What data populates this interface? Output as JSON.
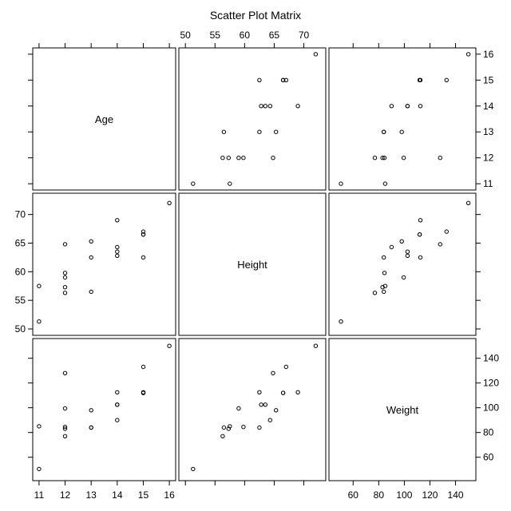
{
  "chart_data": {
    "type": "scatter",
    "title": "Scatter Plot Matrix",
    "variables": [
      "Age",
      "Height",
      "Weight"
    ],
    "ranges": {
      "Age": [
        10.85,
        16.15
      ],
      "Height": [
        49.3,
        73.3
      ],
      "Weight": [
        43,
        154
      ]
    },
    "ticks": {
      "Age": [
        11,
        12,
        13,
        14,
        15,
        16
      ],
      "Height": [
        50,
        55,
        60,
        65,
        70
      ],
      "Weight": [
        60,
        80,
        100,
        120,
        140
      ]
    },
    "grid": false,
    "observations": [
      {
        "Age": 14,
        "Height": 69.0,
        "Weight": 112.5
      },
      {
        "Age": 13,
        "Height": 56.5,
        "Weight": 84.0
      },
      {
        "Age": 13,
        "Height": 65.3,
        "Weight": 98.0
      },
      {
        "Age": 14,
        "Height": 62.8,
        "Weight": 102.5
      },
      {
        "Age": 14,
        "Height": 63.5,
        "Weight": 102.5
      },
      {
        "Age": 12,
        "Height": 57.3,
        "Weight": 83.0
      },
      {
        "Age": 12,
        "Height": 59.8,
        "Weight": 84.5
      },
      {
        "Age": 15,
        "Height": 62.5,
        "Weight": 112.5
      },
      {
        "Age": 13,
        "Height": 62.5,
        "Weight": 84.0
      },
      {
        "Age": 12,
        "Height": 59.0,
        "Weight": 99.5
      },
      {
        "Age": 11,
        "Height": 51.3,
        "Weight": 50.5
      },
      {
        "Age": 14,
        "Height": 64.3,
        "Weight": 90.0
      },
      {
        "Age": 12,
        "Height": 56.3,
        "Weight": 77.0
      },
      {
        "Age": 15,
        "Height": 66.5,
        "Weight": 112.0
      },
      {
        "Age": 16,
        "Height": 72.0,
        "Weight": 150.0
      },
      {
        "Age": 12,
        "Height": 64.8,
        "Weight": 128.0
      },
      {
        "Age": 15,
        "Height": 67.0,
        "Weight": 133.0
      },
      {
        "Age": 11,
        "Height": 57.5,
        "Weight": 85.0
      },
      {
        "Age": 15,
        "Height": 66.5,
        "Weight": 112.0
      }
    ]
  }
}
